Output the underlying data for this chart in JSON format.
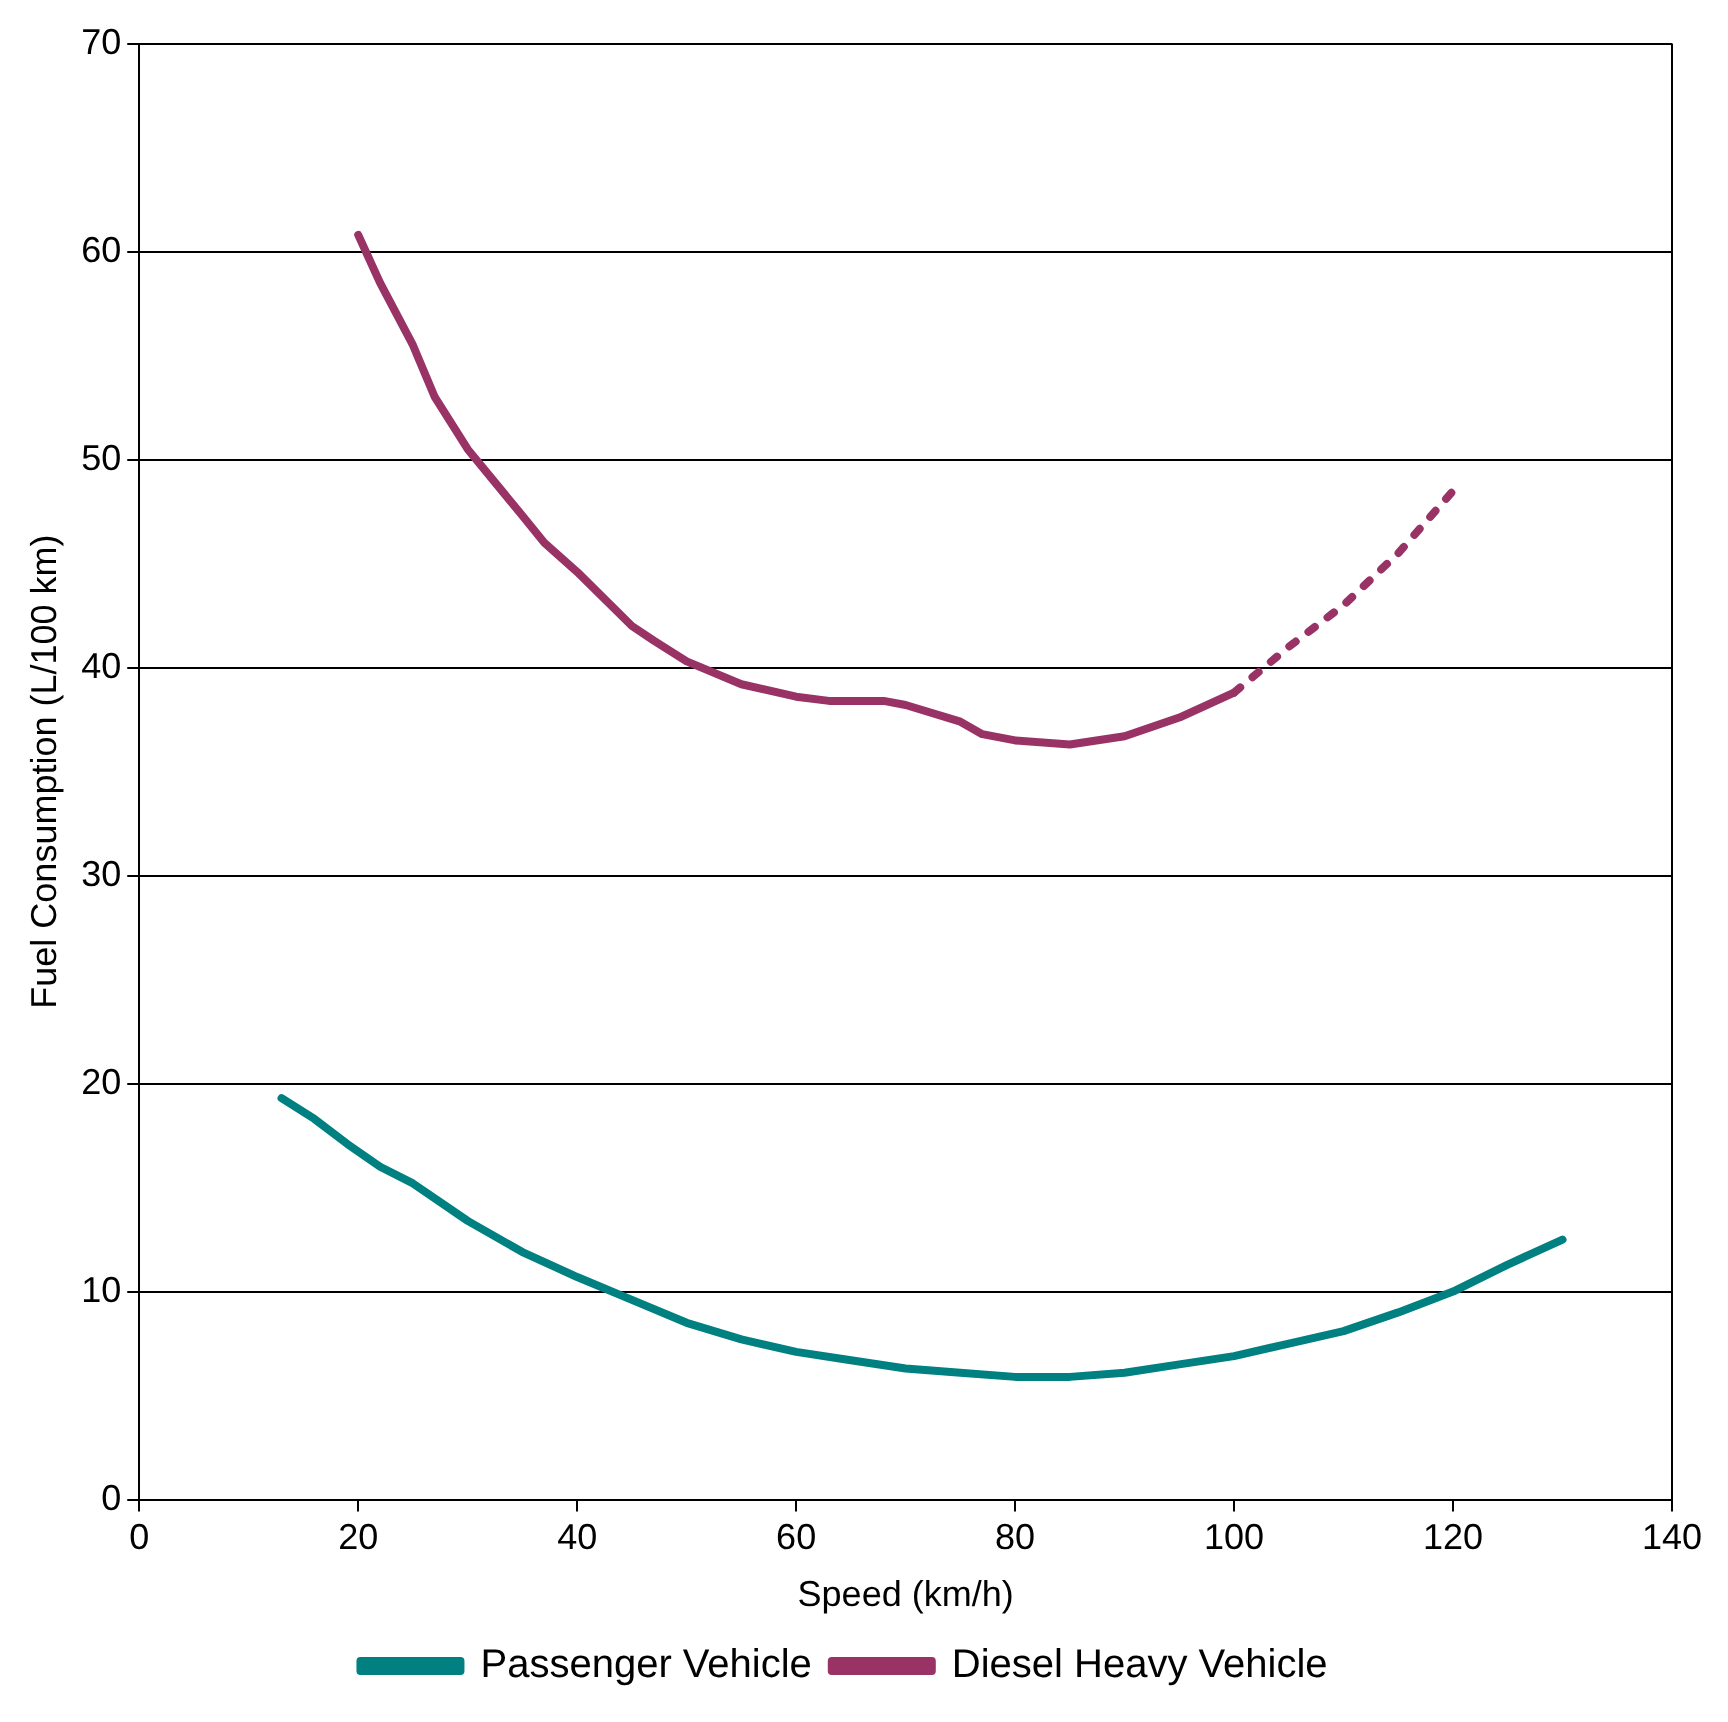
{
  "chart_data": {
    "type": "line",
    "xlabel": "Speed (km/h)",
    "ylabel": "Fuel Consumption (L/100 km)",
    "xlim": [
      0,
      140
    ],
    "xticks": [
      0,
      20,
      40,
      60,
      80,
      100,
      120,
      140
    ],
    "ylim": [
      0,
      70
    ],
    "yticks": [
      0,
      10,
      20,
      30,
      40,
      50,
      60,
      70
    ],
    "grid": "y",
    "legend": "bottom",
    "marker": "none",
    "series": [
      {
        "name": "Passenger Vehicle",
        "color": "#008080",
        "line_style": "solid",
        "x": [
          13,
          16,
          19,
          22,
          25,
          30,
          35,
          40,
          45,
          50,
          55,
          60,
          65,
          70,
          75,
          80,
          85,
          90,
          95,
          100,
          105,
          110,
          115,
          120,
          125,
          130
        ],
        "values": [
          19.3,
          18.3,
          17.1,
          16.0,
          15.2,
          13.4,
          11.9,
          10.7,
          9.6,
          8.5,
          7.7,
          7.1,
          6.7,
          6.3,
          6.1,
          5.9,
          5.9,
          6.1,
          6.5,
          6.9,
          7.5,
          8.1,
          9.0,
          10.0,
          11.3,
          12.5
        ]
      },
      {
        "name": "Diesel Heavy Vehicle",
        "color": "#993366",
        "line_style": "solid",
        "x": [
          20,
          22,
          25,
          27,
          30,
          35,
          37,
          40,
          45,
          47,
          50,
          55,
          60,
          63,
          68,
          70,
          75,
          77,
          80,
          85,
          90,
          95,
          100
        ],
        "values": [
          60.8,
          58.5,
          55.5,
          53.0,
          50.5,
          47.3,
          46.0,
          44.6,
          42.0,
          41.3,
          40.3,
          39.2,
          38.6,
          38.4,
          38.4,
          38.2,
          37.4,
          36.8,
          36.5,
          36.3,
          36.7,
          37.6,
          38.8
        ]
      },
      {
        "color": "#993366",
        "line_style": "dotted",
        "x": [
          100,
          105,
          110,
          115,
          120
        ],
        "values": [
          38.8,
          41.0,
          43.0,
          45.5,
          48.5
        ]
      }
    ]
  }
}
